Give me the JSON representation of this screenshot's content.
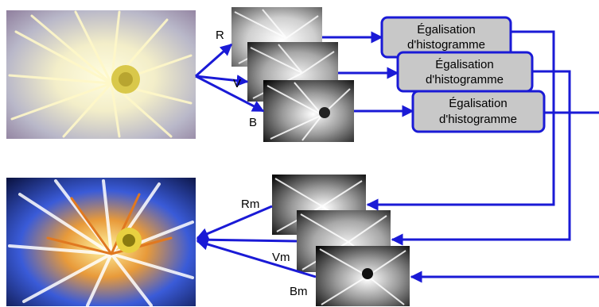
{
  "diagram": {
    "process_boxes": [
      {
        "line1": "Égalisation",
        "line2": "d'histogramme"
      },
      {
        "line1": "Égalisation",
        "line2": "d'histogramme"
      },
      {
        "line1": "Égalisation",
        "line2": "d'histogramme"
      }
    ],
    "input_channels": [
      "R",
      "V",
      "B"
    ],
    "output_channels": [
      "Rm",
      "Vm",
      "Bm"
    ],
    "colors": {
      "arrow": "#1a1ad6",
      "box_fill": "#c8c8c8",
      "box_border": "#1a1ad6"
    }
  }
}
